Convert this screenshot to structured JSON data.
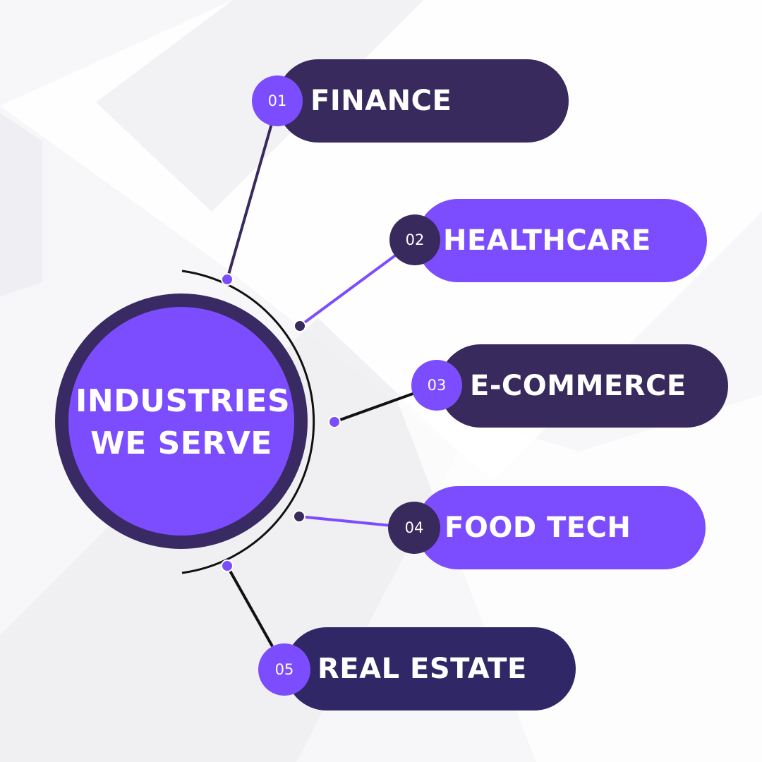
{
  "hub": {
    "title": "INDUSTRIES WE SERVE"
  },
  "industries": [
    {
      "number": "01",
      "label": "FINANCE"
    },
    {
      "number": "02",
      "label": "HEALTHCARE"
    },
    {
      "number": "03",
      "label": "E-COMMERCE"
    },
    {
      "number": "04",
      "label": "FOOD TECH"
    },
    {
      "number": "05",
      "label": "REAL ESTATE"
    }
  ],
  "colors": {
    "accent_purple": "#7c4dff",
    "dark_purple": "#382a5c",
    "navy": "#2f2766",
    "background": "#f7f7f9"
  }
}
